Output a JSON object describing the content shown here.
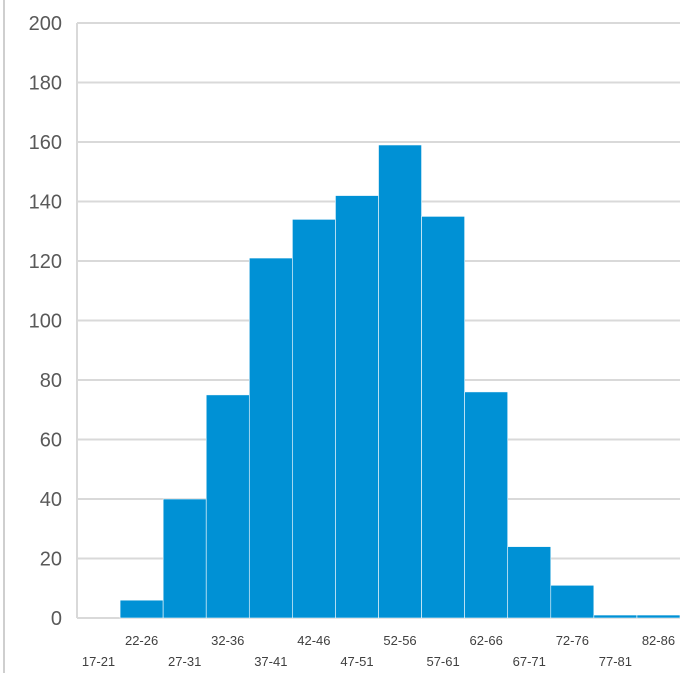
{
  "chart_data": {
    "type": "bar",
    "title": "",
    "xlabel": "",
    "ylabel": "",
    "ylim": [
      0,
      200
    ],
    "yticks": [
      0,
      20,
      40,
      60,
      80,
      100,
      120,
      140,
      160,
      180,
      200
    ],
    "grid": true,
    "legend": "none",
    "color": "#0091d5",
    "categories": [
      "17-21",
      "22-26",
      "27-31",
      "32-36",
      "37-41",
      "42-46",
      "47-51",
      "52-56",
      "57-61",
      "62-66",
      "67-71",
      "72-76",
      "77-81",
      "82-86"
    ],
    "values": [
      0,
      6,
      40,
      75,
      121,
      134,
      142,
      159,
      135,
      76,
      24,
      11,
      1,
      1
    ]
  }
}
